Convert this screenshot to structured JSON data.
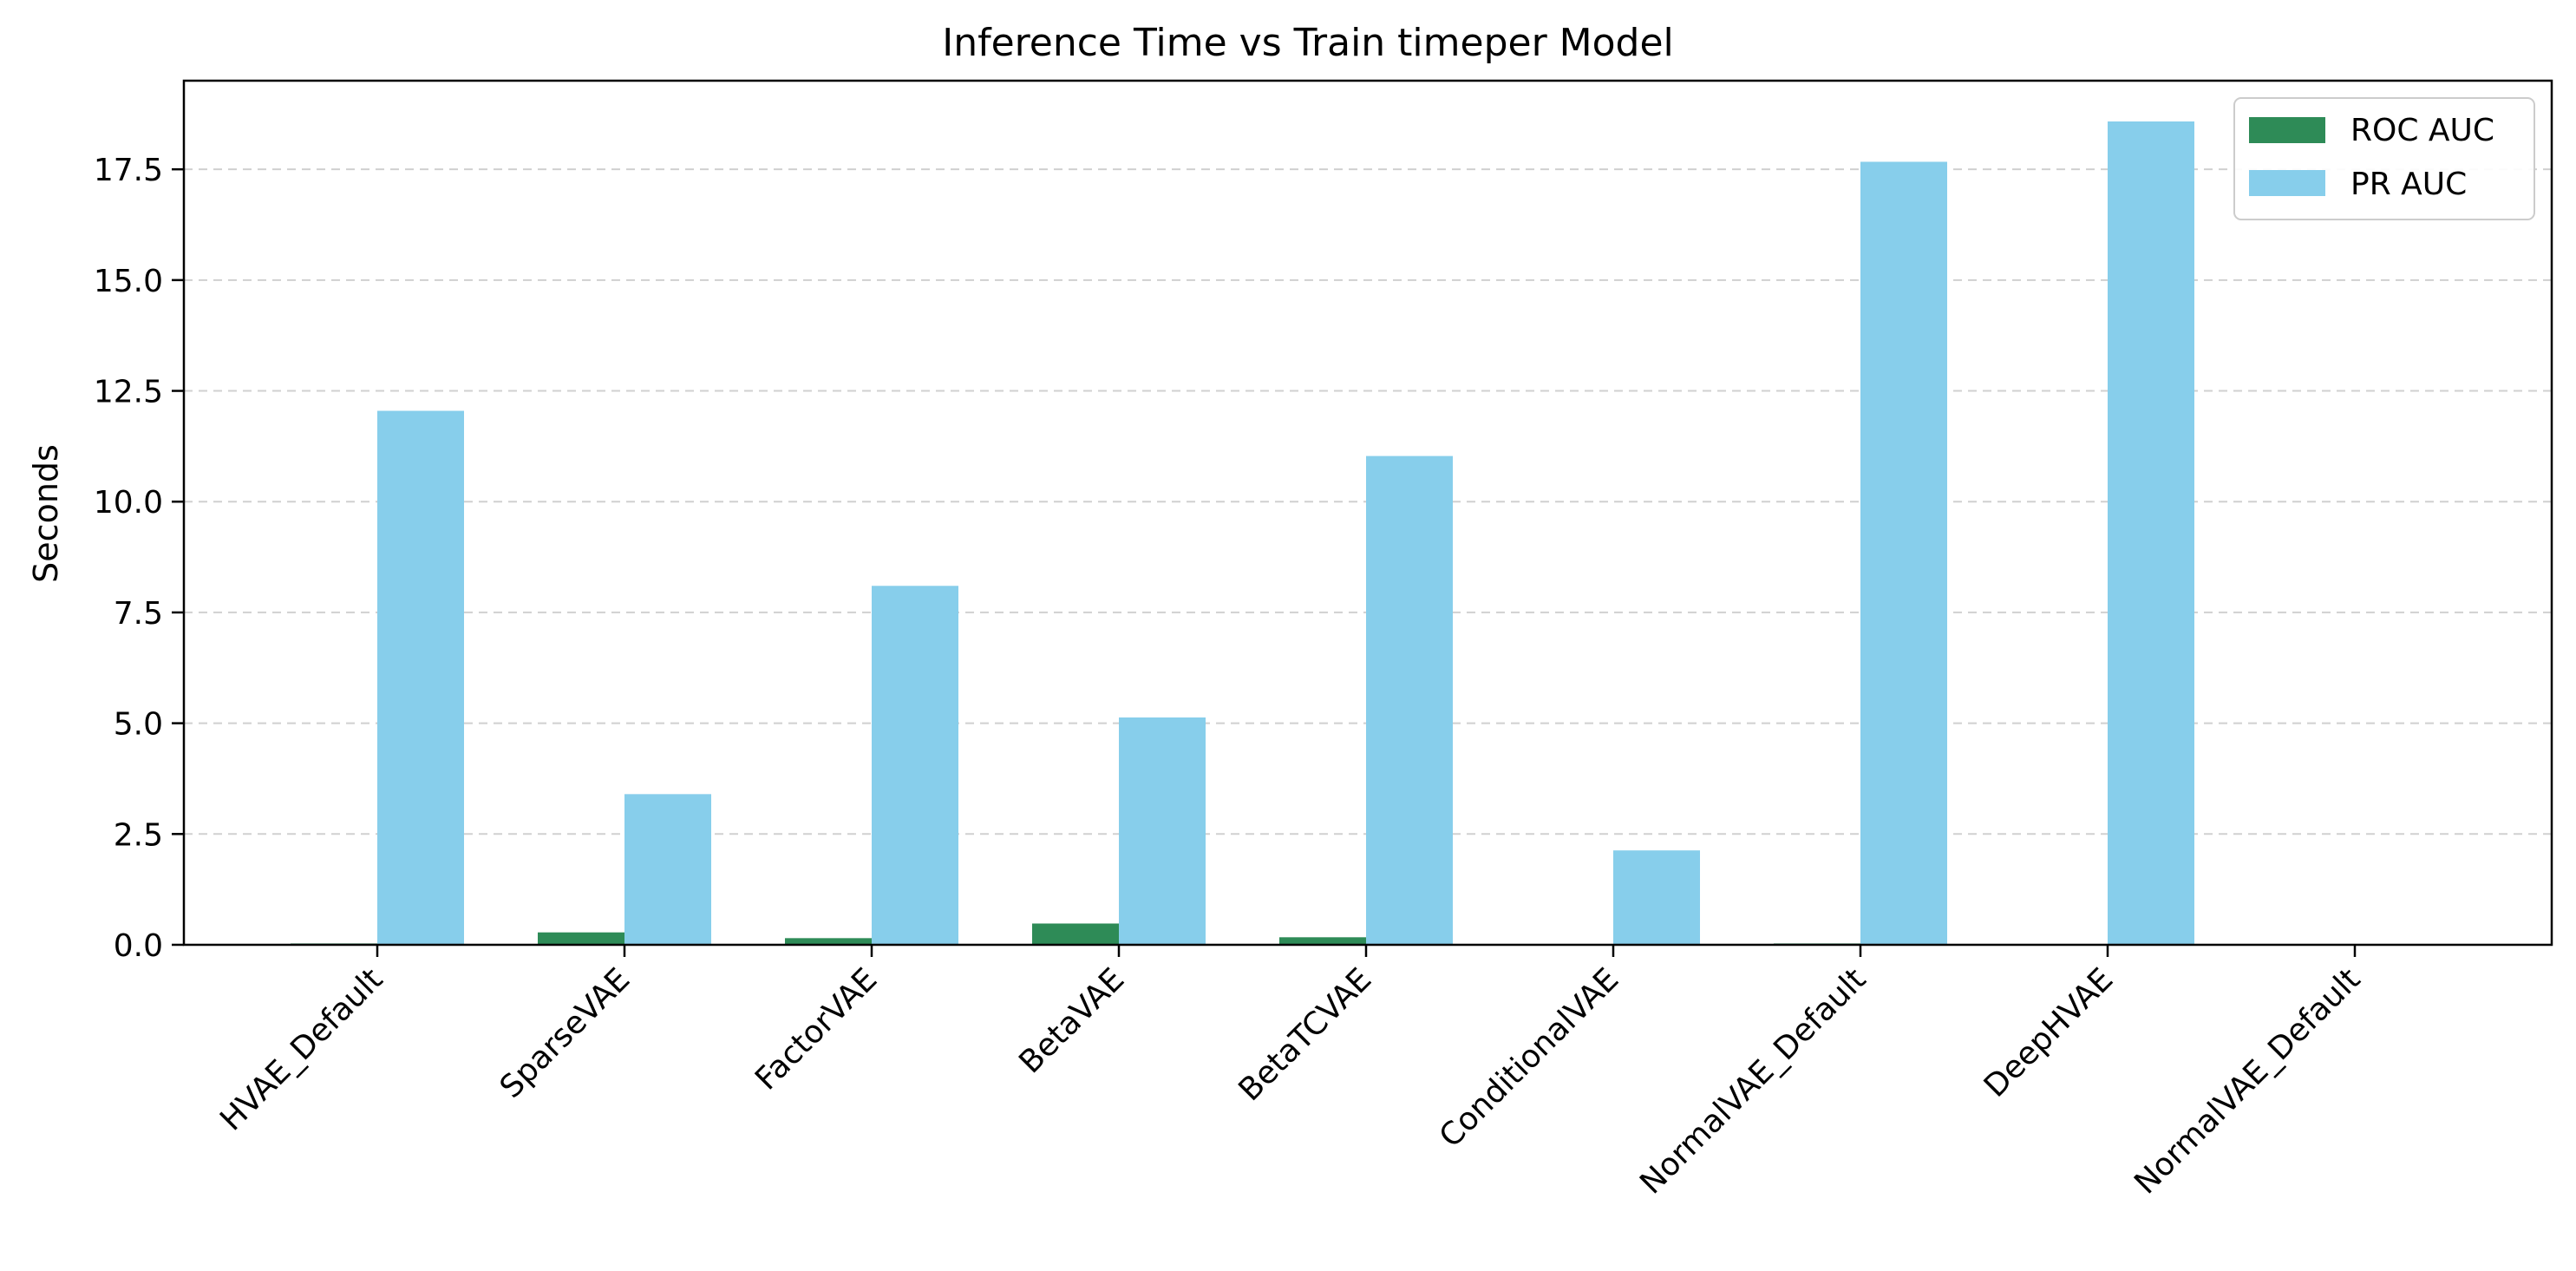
{
  "chart_data": {
    "type": "bar",
    "title": "Inference Time vs Train timeper Model",
    "xlabel": "",
    "ylabel": "Seconds",
    "ylim": [
      0,
      19.5
    ],
    "yticks": [
      "0.0",
      "2.5",
      "5.0",
      "7.5",
      "10.0",
      "12.5",
      "15.0",
      "17.5"
    ],
    "categories": [
      "HVAE_Default",
      "SparseVAE",
      "FactorVAE",
      "BetaVAE",
      "BetaTCVAE",
      "ConditionalVAE",
      "NormalVAE_Default",
      "DeepHVAE",
      "NormalVAE_Default"
    ],
    "series": [
      {
        "name": "ROC AUC",
        "color": "#2e8b57",
        "values": [
          0.03,
          0.28,
          0.15,
          0.48,
          0.17,
          0.0,
          0.03,
          0.0,
          0.0
        ]
      },
      {
        "name": "PR AUC",
        "color": "#87ceeb",
        "values": [
          12.05,
          3.4,
          8.1,
          5.13,
          11.03,
          2.13,
          17.67,
          18.58,
          0.0
        ]
      }
    ],
    "grid": "y-dashed",
    "legend_position": "top-right"
  }
}
